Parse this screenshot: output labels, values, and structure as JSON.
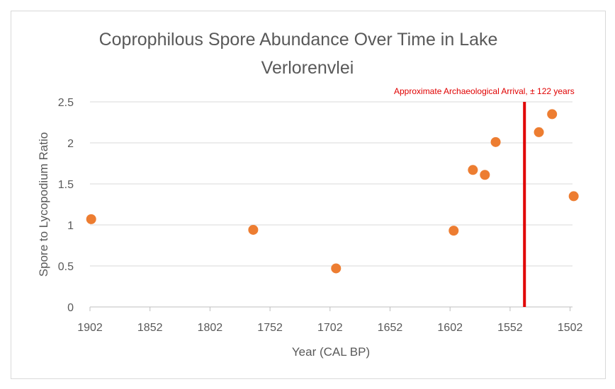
{
  "chart_data": {
    "type": "scatter",
    "title_lines": [
      "Coprophilous Spore Abundance Over Time in Lake",
      "Verlorenvlei"
    ],
    "xlabel": "Year (CAL BP)",
    "ylabel": "Spore to Lycopodium Ratio",
    "x_reversed": true,
    "xlim": [
      1902,
      1500
    ],
    "ylim": [
      0,
      2.5
    ],
    "x_ticks": [
      1902,
      1852,
      1802,
      1752,
      1702,
      1652,
      1602,
      1552,
      1502
    ],
    "y_ticks": [
      0,
      0.5,
      1,
      1.5,
      2,
      2.5
    ],
    "y_tick_labels": [
      "0",
      "0.5",
      "1",
      "1.5",
      "2",
      "2.5"
    ],
    "grid": "horizontal",
    "marker_color": "#ed7d31",
    "series": [
      {
        "x": [
          1901,
          1766,
          1697,
          1599,
          1583,
          1573,
          1564,
          1528,
          1517,
          1499
        ],
        "y": [
          1.07,
          0.94,
          0.47,
          0.93,
          1.67,
          1.61,
          2.01,
          2.13,
          2.35,
          1.35
        ]
      }
    ],
    "reference_line": {
      "x": 1540,
      "color": "#e00000",
      "label": "Approximate Archaeological Arrival, ± 122 years"
    }
  }
}
